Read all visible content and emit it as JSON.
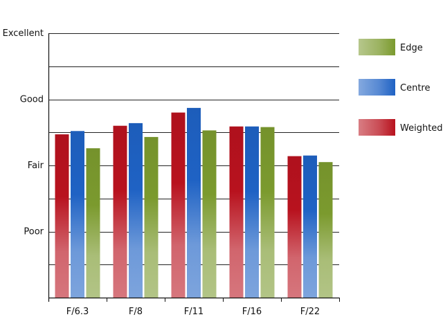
{
  "chart_data": {
    "type": "bar",
    "categories": [
      "F/6.3",
      "F/8",
      "F/11",
      "F/16",
      "F/22"
    ],
    "series": [
      {
        "name": "Weighted",
        "values": [
          2.47,
          2.6,
          2.8,
          2.59,
          2.14
        ],
        "color": "#b8121e"
      },
      {
        "name": "Centre",
        "values": [
          2.52,
          2.64,
          2.87,
          2.59,
          2.15
        ],
        "color": "#1f62c4"
      },
      {
        "name": "Edge",
        "values": [
          2.26,
          2.43,
          2.53,
          2.58,
          2.05
        ],
        "color": "#7b9a2e"
      }
    ],
    "ylim": [
      0,
      4
    ],
    "yticks": [
      {
        "value": 1,
        "label": "Poor"
      },
      {
        "value": 2,
        "label": "Fair"
      },
      {
        "value": 3,
        "label": "Good"
      },
      {
        "value": 4,
        "label": "Excellent"
      }
    ],
    "minor_gridlines": [
      0.5,
      1,
      1.5,
      2,
      2.5,
      3,
      3.5,
      4
    ],
    "legend_order": [
      "Edge",
      "Centre",
      "Weighted"
    ],
    "legend_position": "right",
    "grid": true
  }
}
